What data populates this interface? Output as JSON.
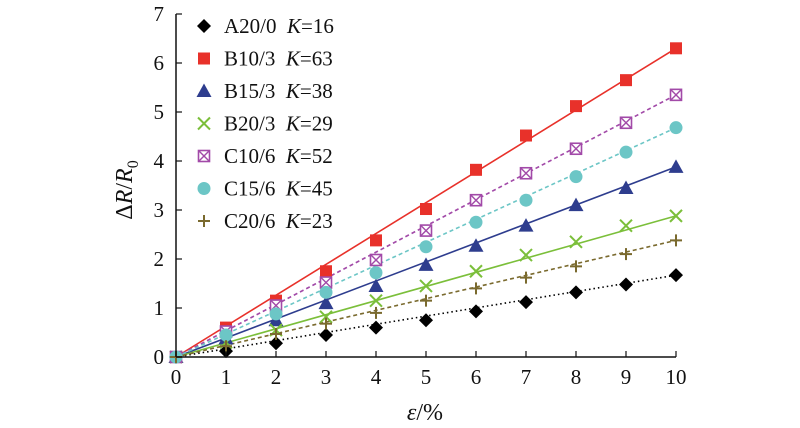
{
  "chart_data": {
    "type": "scatter",
    "xlabel_symbol": "ε",
    "xlabel_unit": "/%",
    "ylabel_delta": "Δ",
    "ylabel_R": "R",
    "ylabel_slash": "/",
    "ylabel_R0": "R",
    "ylabel_sub": "0",
    "xlim": [
      0,
      10
    ],
    "ylim": [
      0,
      7
    ],
    "xticks": [
      "0",
      "1",
      "2",
      "3",
      "4",
      "5",
      "6",
      "7",
      "8",
      "9",
      "10"
    ],
    "yticks": [
      "0",
      "1",
      "2",
      "3",
      "4",
      "5",
      "6",
      "7"
    ],
    "grid": false,
    "legend_position": "top-left",
    "x": [
      0,
      1,
      2,
      3,
      4,
      5,
      6,
      7,
      8,
      9,
      10
    ],
    "series": [
      {
        "name": "A20/0",
        "k_label": "K",
        "k_value": "=16",
        "color": "#000000",
        "marker": "diamond",
        "line": "dotted",
        "values": [
          0,
          0.12,
          0.28,
          0.45,
          0.6,
          0.75,
          0.93,
          1.12,
          1.32,
          1.48,
          1.67
        ]
      },
      {
        "name": "B10/3",
        "k_label": "K",
        "k_value": "=63",
        "color": "#e8312a",
        "marker": "square",
        "line": "solid",
        "values": [
          0,
          0.6,
          1.15,
          1.75,
          2.38,
          3.02,
          3.82,
          4.52,
          5.12,
          5.65,
          6.3
        ]
      },
      {
        "name": "B15/3",
        "k_label": "K",
        "k_value": "=38",
        "color": "#2e3d8e",
        "marker": "triangle",
        "line": "solid",
        "values": [
          0,
          0.38,
          0.75,
          1.1,
          1.45,
          1.88,
          2.27,
          2.68,
          3.1,
          3.45,
          3.88
        ]
      },
      {
        "name": "B20/3",
        "k_label": "K",
        "k_value": "=29",
        "color": "#7bbf3a",
        "marker": "x",
        "line": "solid",
        "values": [
          0,
          0.3,
          0.55,
          0.82,
          1.15,
          1.45,
          1.75,
          2.08,
          2.35,
          2.68,
          2.88
        ]
      },
      {
        "name": "C10/6",
        "k_label": "K",
        "k_value": "=52",
        "color": "#a24aa8",
        "marker": "boxx",
        "line": "dashed",
        "values": [
          0,
          0.52,
          1.05,
          1.52,
          1.98,
          2.58,
          3.2,
          3.75,
          4.25,
          4.78,
          5.35
        ]
      },
      {
        "name": "C15/6",
        "k_label": "K",
        "k_value": "=45",
        "color": "#6cc6c6",
        "marker": "circle",
        "line": "dashed",
        "values": [
          0,
          0.45,
          0.88,
          1.32,
          1.72,
          2.25,
          2.75,
          3.2,
          3.68,
          4.18,
          4.68
        ]
      },
      {
        "name": "C20/6",
        "k_label": "K",
        "k_value": "=23",
        "color": "#7a6a2e",
        "marker": "plus",
        "line": "dashed",
        "values": [
          0,
          0.22,
          0.47,
          0.68,
          0.9,
          1.15,
          1.4,
          1.62,
          1.85,
          2.1,
          2.38
        ]
      }
    ]
  }
}
